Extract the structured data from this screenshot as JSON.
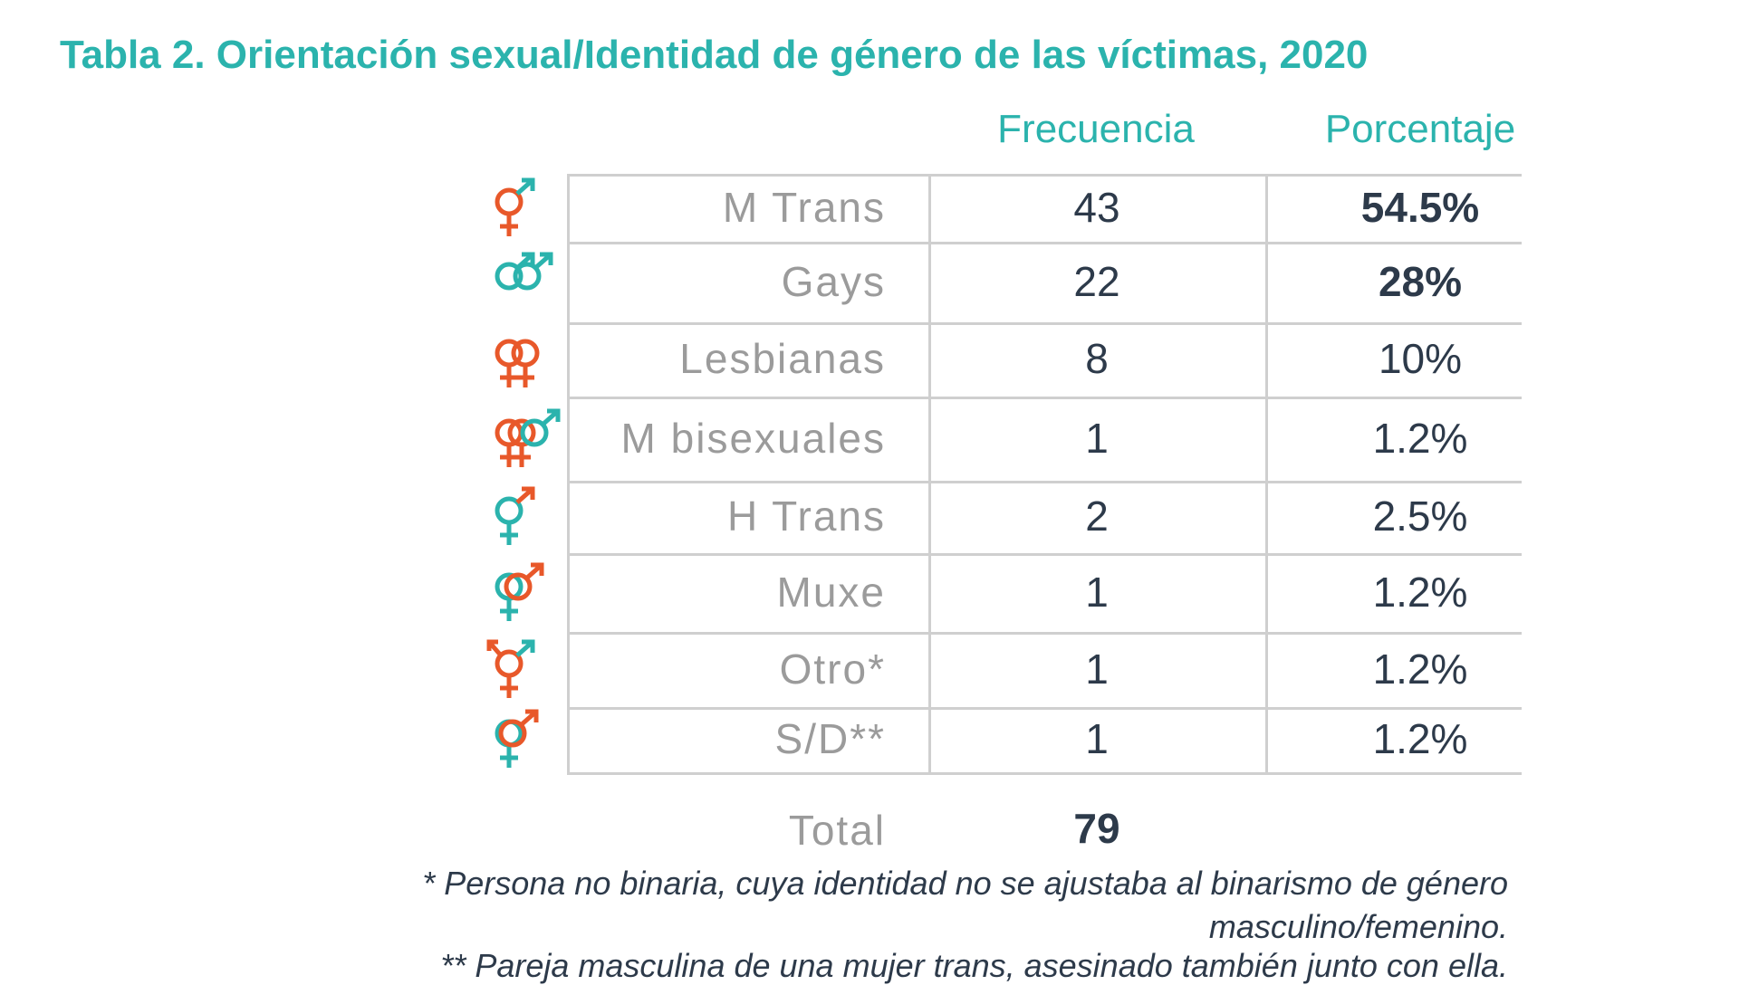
{
  "title": "Tabla 2. Orientación sexual/Identidad de género de las víctimas, 2020",
  "table": {
    "headers": [
      "Frecuencia",
      "Porcentaje"
    ],
    "rows": [
      [
        "M Trans",
        43,
        "54.5%"
      ],
      [
        "Gays",
        22,
        "28%"
      ],
      [
        "Lesbianas",
        8,
        "10%"
      ],
      [
        "M bisexuales",
        1,
        "1.2%"
      ],
      [
        "H Trans",
        2,
        "2.5%"
      ],
      [
        "Muxe",
        1,
        "1.2%"
      ],
      [
        "Otro*",
        1,
        "1.2%"
      ],
      [
        "S/D**",
        1,
        "1.2%"
      ]
    ],
    "total_label": "Total",
    "total": 79
  },
  "notes": [
    "* Persona no binaria, cuya identidad no se ajustaba al binarismo de género masculino/femenino.",
    "** Pareja masculina de una mujer trans, asesinado también junto con ella."
  ]
}
